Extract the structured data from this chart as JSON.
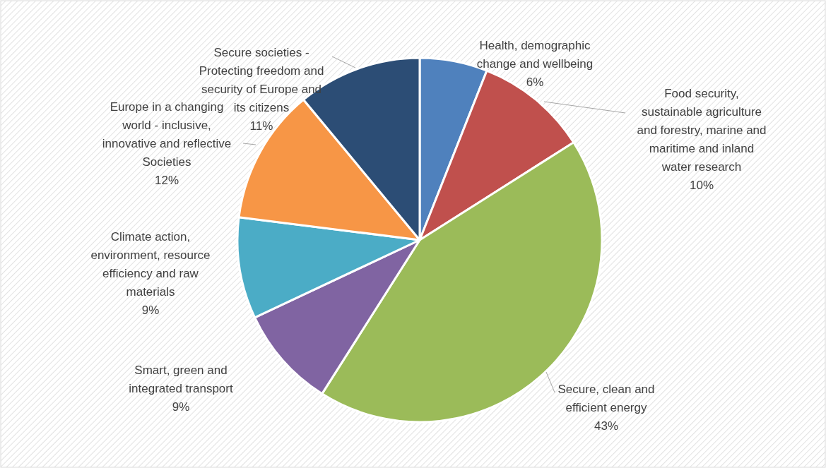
{
  "chart_data": {
    "type": "pie",
    "categories": [
      "Health, demographic change and wellbeing",
      "Food security, sustainable agriculture and forestry, marine and maritime and inland water research",
      "Secure, clean and efficient energy",
      "Smart, green and integrated transport",
      "Climate action, environment, resource efficiency and raw materials",
      "Europe in a changing world - inclusive, innovative and reflective Societies",
      "Secure societies - Protecting freedom and security of Europe and its citizens"
    ],
    "values": [
      6,
      10,
      43,
      9,
      9,
      12,
      11
    ],
    "colors": [
      "#4f81bd",
      "#c0504d",
      "#9bbb59",
      "#8064a2",
      "#4bacc6",
      "#f79646",
      "#2c4d75"
    ],
    "value_labels": [
      "6%",
      "10%",
      "43%",
      "9%",
      "9%",
      "12%",
      "11%"
    ]
  }
}
